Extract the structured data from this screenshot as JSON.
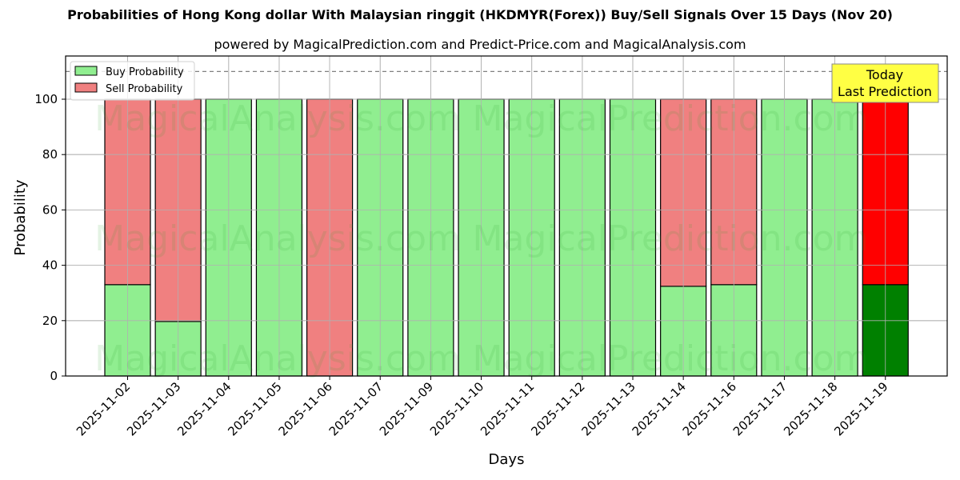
{
  "header": {
    "title": "Probabilities of Hong Kong dollar With Malaysian ringgit (HKDMYR(Forex)) Buy/Sell Signals Over 15 Days (Nov 20)",
    "subtitle": "powered by MagicalPrediction.com and Predict-Price.com and MagicalAnalysis.com"
  },
  "legend": {
    "buy_label": "Buy Probability",
    "sell_label": "Sell Probability"
  },
  "annotation": {
    "line1": "Today",
    "line2": "Last Prediction"
  },
  "watermarks": {
    "left": "MagicalAnalysis.com",
    "right": "MagicalPrediction.com"
  },
  "colors": {
    "buy": "#90ee90",
    "sell": "#f08080",
    "today_buy": "#008000",
    "today_sell": "#ff0000",
    "annotation_bg": "#ffff44"
  },
  "chart_data": {
    "type": "bar",
    "stacked": true,
    "title": "Probabilities of Hong Kong dollar With Malaysian ringgit (HKDMYR(Forex)) Buy/Sell Signals Over 15 Days (Nov 20)",
    "subtitle": "powered by MagicalPrediction.com and Predict-Price.com and MagicalAnalysis.com",
    "xlabel": "Days",
    "ylabel": "Probability",
    "ylim": [
      0,
      115
    ],
    "yticks": [
      0,
      20,
      40,
      60,
      80,
      100
    ],
    "grid": true,
    "legend_position": "upper left",
    "reference_line": 110,
    "categories": [
      "2025-11-02",
      "2025-11-03",
      "2025-11-04",
      "2025-11-05",
      "2025-11-06",
      "2025-11-07",
      "2025-11-09",
      "2025-11-10",
      "2025-11-11",
      "2025-11-12",
      "2025-11-13",
      "2025-11-14",
      "2025-11-16",
      "2025-11-17",
      "2025-11-18",
      "2025-11-19"
    ],
    "series": [
      {
        "name": "Buy Probability",
        "values": [
          33,
          19.7,
          100,
          100,
          0,
          100,
          100,
          100,
          100,
          100,
          100,
          32.4,
          33,
          100,
          100,
          33
        ]
      },
      {
        "name": "Sell Probability",
        "values": [
          67,
          80.3,
          0,
          0,
          100,
          0,
          0,
          0,
          0,
          0,
          0,
          67.6,
          67,
          0,
          0,
          67
        ]
      }
    ],
    "annotations": [
      "Today\nLast Prediction"
    ]
  }
}
